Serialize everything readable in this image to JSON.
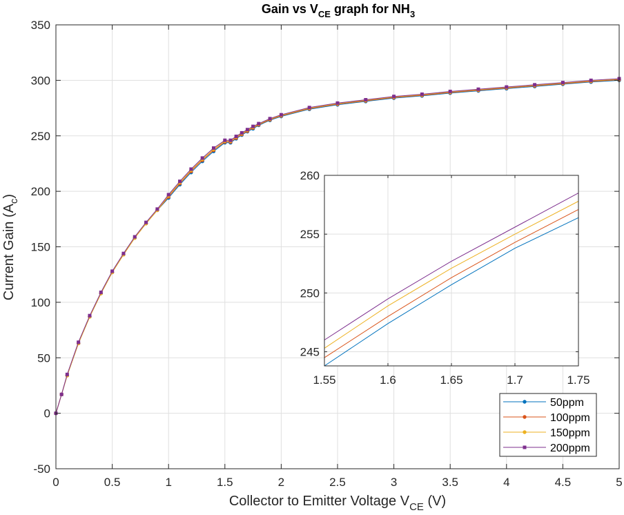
{
  "chart_data": {
    "type": "line",
    "title": {
      "main": "Gain vs V",
      "sub": "CE",
      "mid": " graph for NH",
      "sub2": "3"
    },
    "xlabel": {
      "main": "Collector to Emitter Voltage V",
      "sub": "CE",
      "tail": " (V)"
    },
    "ylabel": {
      "main": "Current Gain (A",
      "sub": "c",
      "tail": ")"
    },
    "xlim": [
      0,
      5
    ],
    "ylim": [
      -50,
      350
    ],
    "xticks": [
      "0",
      "0.5",
      "1",
      "1.5",
      "2",
      "2.5",
      "3",
      "3.5",
      "4",
      "4.5",
      "5"
    ],
    "yticks": [
      "-50",
      "0",
      "50",
      "100",
      "150",
      "200",
      "250",
      "300",
      "350"
    ],
    "grid": true,
    "legend_position": "bottom-right",
    "series": [
      {
        "name": "50ppm",
        "color": "#0072BD",
        "marker": "circle",
        "x": [
          0,
          0.05,
          0.1,
          0.2,
          0.3,
          0.4,
          0.5,
          0.6,
          0.7,
          0.8,
          0.9,
          1.0,
          1.1,
          1.2,
          1.3,
          1.4,
          1.5,
          1.55,
          1.6,
          1.65,
          1.7,
          1.75,
          1.8,
          1.9,
          2.0,
          2.25,
          2.5,
          2.75,
          3.0,
          3.25,
          3.5,
          3.75,
          4.0,
          4.25,
          4.5,
          4.75,
          5.0
        ],
        "y": [
          0,
          17,
          34,
          63,
          87,
          108,
          127,
          143,
          158,
          171,
          183,
          194,
          206,
          217,
          227,
          236,
          243.8,
          243.8,
          247.4,
          250.7,
          253.8,
          256.4,
          259.5,
          264,
          267.5,
          274,
          278,
          281,
          284,
          286,
          288.5,
          290.5,
          292.5,
          294.5,
          296.5,
          298.5,
          300
        ]
      },
      {
        "name": "100ppm",
        "color": "#D95319",
        "marker": "circle",
        "x": [
          0,
          0.05,
          0.1,
          0.2,
          0.3,
          0.4,
          0.5,
          0.6,
          0.7,
          0.8,
          0.9,
          1.0,
          1.1,
          1.2,
          1.3,
          1.4,
          1.5,
          1.55,
          1.6,
          1.65,
          1.7,
          1.75,
          1.8,
          1.9,
          2.0,
          2.25,
          2.5,
          2.75,
          3.0,
          3.25,
          3.5,
          3.75,
          4.0,
          4.25,
          4.5,
          4.75,
          5.0
        ],
        "y": [
          0,
          17,
          34,
          63,
          87,
          108,
          127,
          143,
          158,
          171,
          183,
          195,
          207,
          218,
          228,
          237,
          244.5,
          244.5,
          248,
          251.3,
          254.3,
          257.1,
          260,
          264.5,
          268,
          274.5,
          278.5,
          281.5,
          284.5,
          286.5,
          289,
          291,
          293,
          295,
          297,
          299,
          300.5
        ]
      },
      {
        "name": "150ppm",
        "color": "#EDB120",
        "marker": "circle",
        "x": [
          0,
          0.05,
          0.1,
          0.2,
          0.3,
          0.4,
          0.5,
          0.6,
          0.7,
          0.8,
          0.9,
          1.0,
          1.1,
          1.2,
          1.3,
          1.4,
          1.5,
          1.55,
          1.6,
          1.65,
          1.7,
          1.75,
          1.8,
          1.9,
          2.0,
          2.25,
          2.5,
          2.75,
          3.0,
          3.25,
          3.5,
          3.75,
          4.0,
          4.25,
          4.5,
          4.75,
          5.0
        ],
        "y": [
          0,
          17,
          34,
          63,
          87,
          108,
          127,
          143,
          158,
          171,
          183,
          196,
          208,
          219,
          229,
          238,
          245.3,
          245.3,
          248.9,
          252.1,
          255,
          257.8,
          260.5,
          265,
          268.5,
          275,
          279,
          282,
          285,
          287,
          289.5,
          291.5,
          293.5,
          295.5,
          297.5,
          299.5,
          301
        ]
      },
      {
        "name": "200ppm",
        "color": "#7E2F8E",
        "marker": "square",
        "x": [
          0,
          0.05,
          0.1,
          0.2,
          0.3,
          0.4,
          0.5,
          0.6,
          0.7,
          0.8,
          0.9,
          1.0,
          1.1,
          1.2,
          1.3,
          1.4,
          1.5,
          1.55,
          1.6,
          1.65,
          1.7,
          1.75,
          1.8,
          1.9,
          2.0,
          2.25,
          2.5,
          2.75,
          3.0,
          3.25,
          3.5,
          3.75,
          4.0,
          4.25,
          4.5,
          4.75,
          5.0
        ],
        "y": [
          0,
          17,
          35,
          64,
          88,
          109,
          128,
          144,
          159,
          172,
          184,
          197,
          209,
          220,
          230,
          239,
          246,
          246,
          249.5,
          252.7,
          255.6,
          258.5,
          261,
          265.5,
          269,
          275.5,
          279.5,
          282.5,
          285.5,
          287.5,
          290,
          292,
          294,
          296,
          298,
          300,
          301.5
        ]
      }
    ],
    "inset": {
      "xlim": [
        1.55,
        1.75
      ],
      "ylim": [
        243.8,
        260
      ],
      "xticks": [
        "1.55",
        "1.6",
        "1.65",
        "1.7",
        "1.75"
      ],
      "yticks": [
        "245",
        "250",
        "255",
        "260"
      ]
    }
  }
}
